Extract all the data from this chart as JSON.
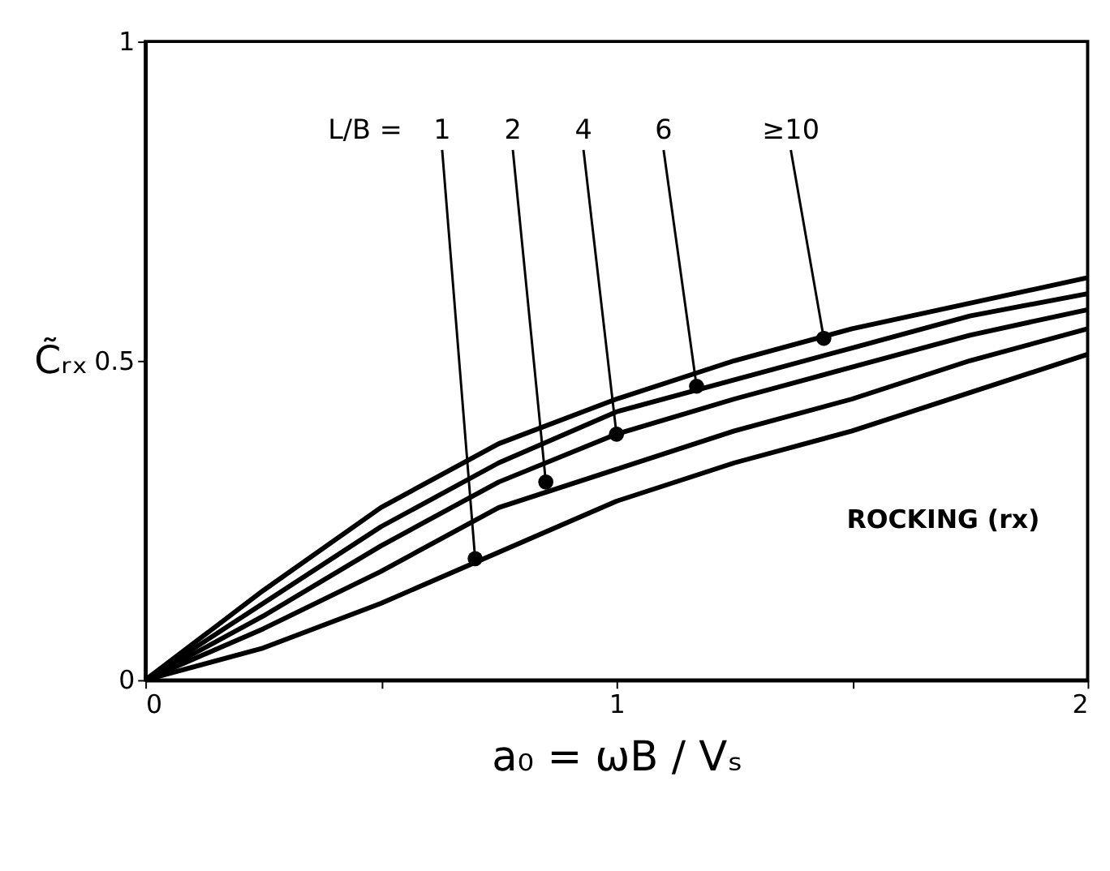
{
  "chart_data": {
    "type": "line",
    "xlabel": "a₀ = ωB / Vₛ",
    "ylabel": "C̃ᵣₓ",
    "x": [
      0,
      0.25,
      0.5,
      0.75,
      1.0,
      1.25,
      1.5,
      1.75,
      2.0
    ],
    "series": [
      {
        "color": "#000000",
        "values": [
          0,
          0.05,
          0.12,
          0.2,
          0.28,
          0.34,
          0.39,
          0.45,
          0.51
        ]
      },
      {
        "color": "#000000",
        "values": [
          0,
          0.08,
          0.17,
          0.27,
          0.33,
          0.39,
          0.44,
          0.5,
          0.55
        ]
      },
      {
        "color": "#000000",
        "values": [
          0,
          0.1,
          0.21,
          0.31,
          0.385,
          0.44,
          0.49,
          0.54,
          0.58
        ]
      },
      {
        "color": "#000000",
        "values": [
          0,
          0.12,
          0.24,
          0.34,
          0.42,
          0.47,
          0.52,
          0.57,
          0.605
        ]
      },
      {
        "color": "#000000",
        "values": [
          0,
          0.14,
          0.27,
          0.37,
          0.44,
          0.5,
          0.55,
          0.59,
          0.63
        ]
      }
    ],
    "annotations": [
      "L/B =",
      {
        "text": "1",
        "x": 0.7,
        "y": 0.19
      },
      {
        "text": "2",
        "x": 0.85,
        "y": 0.31
      },
      {
        "text": "4",
        "x": 1.0,
        "y": 0.385
      },
      {
        "text": "6",
        "x": 1.17,
        "y": 0.46
      },
      {
        "text": "≥10",
        "x": 1.44,
        "y": 0.535
      },
      "ROCKING (rx)"
    ],
    "xlim": [
      0,
      2
    ],
    "xticks": [
      0,
      {
        "value": 0.5,
        "label": null
      },
      1,
      {
        "value": 1.5,
        "label": null
      },
      2
    ],
    "ylim": [
      0,
      1
    ],
    "yticks": [
      0,
      0.5,
      1
    ],
    "grid": false,
    "legend": false,
    "marker": "none",
    "line_style": "solid"
  }
}
